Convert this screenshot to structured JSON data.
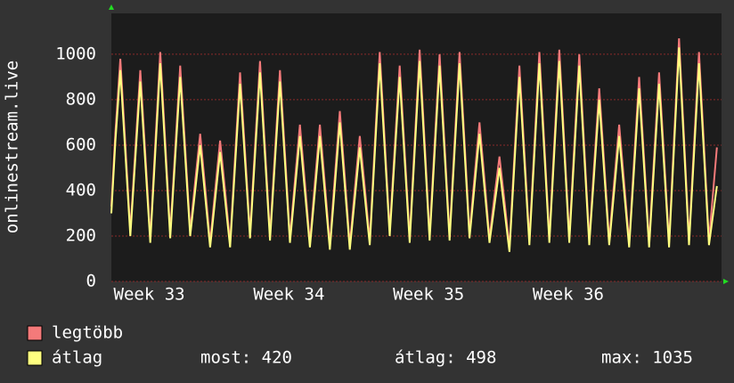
{
  "chart_data": {
    "type": "line",
    "ylabel": "onlinestream.live",
    "xlim": [
      0,
      30.58
    ],
    "xticks": [
      {
        "value": 1.9,
        "label": "Week 33"
      },
      {
        "value": 8.9,
        "label": "Week 34"
      },
      {
        "value": 15.9,
        "label": "Week 35"
      },
      {
        "value": 22.9,
        "label": "Week 36"
      }
    ],
    "ylim": [
      0,
      1180
    ],
    "yticks": [
      0,
      200,
      400,
      600,
      800,
      1000
    ],
    "grid": true,
    "x": [
      0,
      0.2,
      0.45,
      0.7,
      0.95,
      1.2,
      1.45,
      1.7,
      1.95,
      2.2,
      2.45,
      2.7,
      2.95,
      3.2,
      3.45,
      3.7,
      3.95,
      4.2,
      4.45,
      4.7,
      4.95,
      5.2,
      5.45,
      5.7,
      5.95,
      6.2,
      6.45,
      6.7,
      6.95,
      7.2,
      7.45,
      7.7,
      7.95,
      8.2,
      8.45,
      8.7,
      8.95,
      9.2,
      9.45,
      9.7,
      9.95,
      10.2,
      10.45,
      10.7,
      10.95,
      11.2,
      11.45,
      11.7,
      11.95,
      12.2,
      12.45,
      12.7,
      12.95,
      13.2,
      13.45,
      13.7,
      13.95,
      14.2,
      14.45,
      14.7,
      14.95,
      15.2,
      15.45,
      15.7,
      15.95,
      16.2,
      16.45,
      16.7,
      16.95,
      17.2,
      17.45,
      17.7,
      17.95,
      18.2,
      18.45,
      18.7,
      18.95,
      19.2,
      19.45,
      19.7,
      19.95,
      20.2,
      20.45,
      20.7,
      20.95,
      21.2,
      21.45,
      21.7,
      21.95,
      22.2,
      22.45,
      22.7,
      22.95,
      23.2,
      23.45,
      23.7,
      23.95,
      24.2,
      24.45,
      24.7,
      24.95,
      25.2,
      25.45,
      25.7,
      25.95,
      26.2,
      26.45,
      26.7,
      26.95,
      27.2,
      27.45,
      27.7,
      27.95,
      28.2,
      28.45,
      28.7,
      28.95,
      29.2,
      29.45,
      29.7,
      29.95,
      30.35
    ],
    "series": [
      {
        "name": "legtöbb",
        "color": "#f47a7a",
        "values": [
          330,
          655,
          980,
          605,
          220,
          580,
          930,
          565,
          190,
          605,
          1010,
          615,
          210,
          585,
          950,
          590,
          220,
          440,
          650,
          415,
          170,
          400,
          620,
          400,
          170,
          550,
          920,
          570,
          210,
          595,
          970,
          590,
          200,
          570,
          930,
          565,
          190,
          445,
          690,
          435,
          170,
          435,
          690,
          430,
          160,
          460,
          750,
          460,
          160,
          405,
          640,
          415,
          180,
          600,
          1010,
          620,
          220,
          590,
          950,
          575,
          190,
          610,
          1020,
          615,
          200,
          605,
          1000,
          605,
          200,
          610,
          1010,
          615,
          210,
          460,
          700,
          450,
          190,
          375,
          550,
          355,
          150,
          555,
          950,
          570,
          180,
          600,
          1010,
          605,
          190,
          610,
          1020,
          610,
          190,
          600,
          1000,
          595,
          180,
          520,
          850,
          520,
          180,
          440,
          690,
          435,
          170,
          540,
          900,
          540,
          170,
          550,
          920,
          550,
          170,
          630,
          1070,
          635,
          180,
          600,
          1010,
          600,
          180,
          590
        ]
      },
      {
        "name": "átlag",
        "color": "#ffff80",
        "values": [
          300,
          615,
          930,
          565,
          200,
          540,
          880,
          525,
          170,
          565,
          960,
          575,
          190,
          545,
          900,
          550,
          200,
          400,
          600,
          375,
          150,
          360,
          570,
          360,
          150,
          510,
          870,
          530,
          190,
          555,
          920,
          550,
          180,
          530,
          880,
          525,
          170,
          405,
          640,
          395,
          150,
          395,
          640,
          390,
          140,
          420,
          700,
          420,
          140,
          365,
          590,
          375,
          160,
          560,
          960,
          580,
          200,
          550,
          900,
          535,
          170,
          570,
          970,
          575,
          180,
          565,
          950,
          565,
          180,
          570,
          960,
          575,
          190,
          420,
          650,
          410,
          170,
          335,
          500,
          315,
          130,
          515,
          900,
          530,
          160,
          560,
          960,
          565,
          170,
          570,
          970,
          570,
          170,
          560,
          950,
          555,
          160,
          480,
          800,
          480,
          160,
          400,
          640,
          395,
          150,
          500,
          850,
          500,
          150,
          510,
          870,
          510,
          150,
          590,
          1030,
          595,
          160,
          560,
          960,
          560,
          160,
          420
        ]
      }
    ],
    "stats": [
      "most: 420",
      "átlag: 498",
      "max: 1035"
    ]
  }
}
